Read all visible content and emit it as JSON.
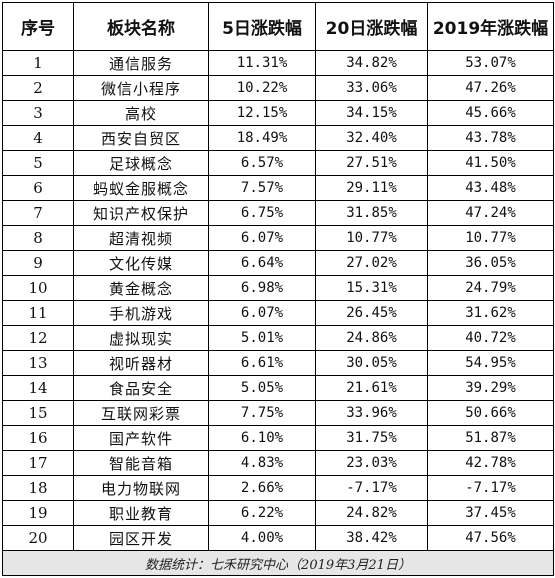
{
  "table": {
    "headers": [
      "序号",
      "板块名称",
      "5日涨跌幅",
      "20日涨跌幅",
      "2019年涨跌幅"
    ],
    "rows": [
      [
        "1",
        "通信服务",
        "11.31%",
        "34.82%",
        "53.07%"
      ],
      [
        "2",
        "微信小程序",
        "10.22%",
        "33.06%",
        "47.26%"
      ],
      [
        "3",
        "高校",
        "12.15%",
        "34.15%",
        "45.66%"
      ],
      [
        "4",
        "西安自贸区",
        "18.49%",
        "32.40%",
        "43.78%"
      ],
      [
        "5",
        "足球概念",
        "6.57%",
        "27.51%",
        "41.50%"
      ],
      [
        "6",
        "蚂蚁金服概念",
        "7.57%",
        "29.11%",
        "43.48%"
      ],
      [
        "7",
        "知识产权保护",
        "6.75%",
        "31.85%",
        "47.24%"
      ],
      [
        "8",
        "超清视频",
        "6.07%",
        "10.77%",
        "10.77%"
      ],
      [
        "9",
        "文化传媒",
        "6.64%",
        "27.02%",
        "36.05%"
      ],
      [
        "10",
        "黄金概念",
        "6.98%",
        "15.31%",
        "24.79%"
      ],
      [
        "11",
        "手机游戏",
        "6.07%",
        "26.45%",
        "31.62%"
      ],
      [
        "12",
        "虚拟现实",
        "5.01%",
        "24.86%",
        "40.72%"
      ],
      [
        "13",
        "视听器材",
        "6.61%",
        "30.05%",
        "54.95%"
      ],
      [
        "14",
        "食品安全",
        "5.05%",
        "21.61%",
        "39.29%"
      ],
      [
        "15",
        "互联网彩票",
        "7.75%",
        "33.96%",
        "50.66%"
      ],
      [
        "16",
        "国产软件",
        "6.10%",
        "31.75%",
        "51.87%"
      ],
      [
        "17",
        "智能音箱",
        "4.83%",
        "23.03%",
        "42.78%"
      ],
      [
        "18",
        "电力物联网",
        "2.66%",
        "-7.17%",
        "-7.17%"
      ],
      [
        "19",
        "职业教育",
        "6.22%",
        "24.82%",
        "37.45%"
      ],
      [
        "20",
        "园区开发",
        "4.00%",
        "38.42%",
        "47.56%"
      ]
    ],
    "footer": "数据统计：七禾研究中心（2019年3月21日）"
  }
}
